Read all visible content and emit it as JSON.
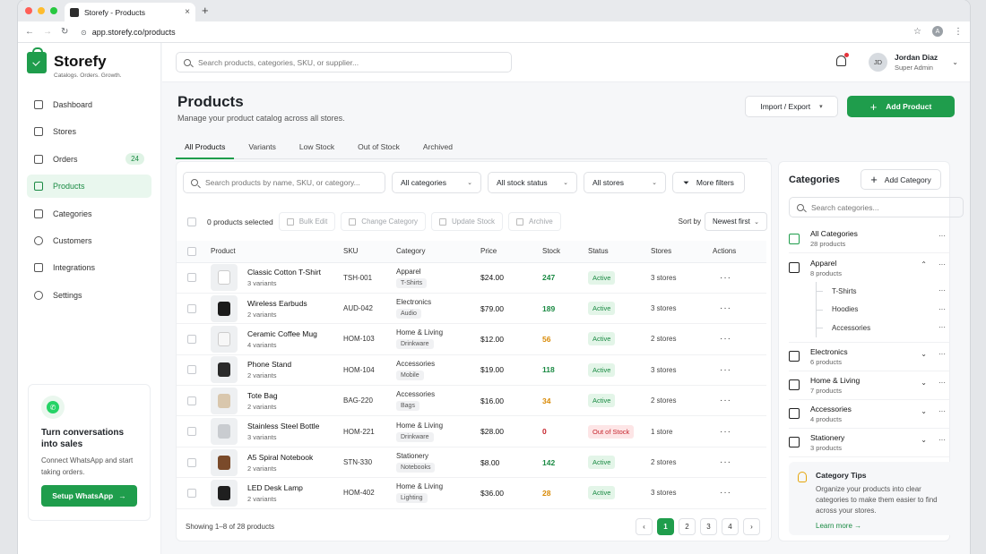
{
  "browser": {
    "tab_title": "Storefy - Products",
    "url": "app.storefy.co/products",
    "profile_initial": "A",
    "new_tab": "+"
  },
  "brand": {
    "name": "Storefy",
    "tagline": "Catalogs. Orders. Growth.",
    "accent": "#1f9d4c"
  },
  "sidebar": {
    "items": [
      {
        "label": "Dashboard",
        "icon": "grid-icon"
      },
      {
        "label": "Stores",
        "icon": "store-icon"
      },
      {
        "label": "Orders",
        "icon": "orders-icon",
        "badge": "24"
      },
      {
        "label": "Products",
        "icon": "bag-icon",
        "active": true
      },
      {
        "label": "Categories",
        "icon": "tag-icon"
      },
      {
        "label": "Customers",
        "icon": "users-icon"
      },
      {
        "label": "Integrations",
        "icon": "puzzle-icon"
      },
      {
        "label": "Settings",
        "icon": "gear-icon"
      }
    ],
    "promo": {
      "title": "Turn conversations into sales",
      "text": "Connect WhatsApp and start taking orders.",
      "button": "Setup WhatsApp"
    }
  },
  "topbar": {
    "search_placeholder": "Search products, categories, SKU, or supplier...",
    "user": {
      "initials": "JD",
      "name": "Jordan Diaz",
      "role": "Super Admin"
    }
  },
  "page": {
    "title": "Products",
    "subtitle": "Manage your product catalog across all stores.",
    "import_export": "Import / Export",
    "add_product": "Add Product",
    "tabs": [
      "All Products",
      "Variants",
      "Low Stock",
      "Out of Stock",
      "Archived"
    ]
  },
  "filters": {
    "search_placeholder": "Search products by name, SKU, or category...",
    "categories": "All categories",
    "stock_status": "All stock status",
    "stores": "All stores",
    "more": "More filters"
  },
  "toolbar": {
    "selected": "0 products selected",
    "bulk_edit": "Bulk Edit",
    "change_category": "Change Category",
    "update_stock": "Update Stock",
    "archive": "Archive",
    "sort_label": "Sort by",
    "sort_value": "Newest first"
  },
  "table": {
    "headers": [
      "Product",
      "SKU",
      "Category",
      "Price",
      "Stock",
      "Status",
      "Stores",
      "Actions"
    ],
    "rows": [
      {
        "name": "Classic Cotton T-Shirt",
        "variants": "3 variants",
        "sku": "TSH-001",
        "category": "Apparel",
        "sub": "T-Shirts",
        "price": "$24.00",
        "stock": "247",
        "stock_color": "#1a8a43",
        "status": "Active",
        "stores": "3 stores",
        "thumb": "#ffffff"
      },
      {
        "name": "Wireless Earbuds",
        "variants": "2 variants",
        "sku": "AUD-042",
        "category": "Electronics",
        "sub": "Audio",
        "price": "$79.00",
        "stock": "189",
        "stock_color": "#1a8a43",
        "status": "Active",
        "stores": "3 stores",
        "thumb": "#1b1b1b"
      },
      {
        "name": "Ceramic Coffee Mug",
        "variants": "4 variants",
        "sku": "HOM-103",
        "category": "Home & Living",
        "sub": "Drinkware",
        "price": "$12.00",
        "stock": "56",
        "stock_color": "#d98a06",
        "status": "Active",
        "stores": "2 stores",
        "thumb": "#f7f7f7"
      },
      {
        "name": "Phone Stand",
        "variants": "2 variants",
        "sku": "HOM-104",
        "category": "Accessories",
        "sub": "Mobile",
        "price": "$19.00",
        "stock": "118",
        "stock_color": "#1a8a43",
        "status": "Active",
        "stores": "3 stores",
        "thumb": "#2a2a2a"
      },
      {
        "name": "Tote Bag",
        "variants": "2 variants",
        "sku": "BAG-220",
        "category": "Accessories",
        "sub": "Bags",
        "price": "$16.00",
        "stock": "34",
        "stock_color": "#d98a06",
        "status": "Active",
        "stores": "2 stores",
        "thumb": "#d9c7ad"
      },
      {
        "name": "Stainless Steel Bottle",
        "variants": "3 variants",
        "sku": "HOM-221",
        "category": "Home & Living",
        "sub": "Drinkware",
        "price": "$28.00",
        "stock": "0",
        "stock_color": "#c6262e",
        "status": "Out of Stock",
        "stores": "1 store",
        "thumb": "#c9ccd0"
      },
      {
        "name": "A5 Spiral Notebook",
        "variants": "2 variants",
        "sku": "STN-330",
        "category": "Stationery",
        "sub": "Notebooks",
        "price": "$8.00",
        "stock": "142",
        "stock_color": "#1a8a43",
        "status": "Active",
        "stores": "2 stores",
        "thumb": "#7a4a2a"
      },
      {
        "name": "LED Desk Lamp",
        "variants": "2 variants",
        "sku": "HOM-402",
        "category": "Home & Living",
        "sub": "Lighting",
        "price": "$36.00",
        "stock": "28",
        "stock_color": "#d98a06",
        "status": "Active",
        "stores": "3 stores",
        "thumb": "#1f1f1f"
      }
    ],
    "footer": "Showing 1–8 of 28 products",
    "pages": [
      "1",
      "2",
      "3",
      "4"
    ],
    "prev": "‹",
    "next": "›"
  },
  "categories": {
    "title": "Categories",
    "add": "Add Category",
    "search_placeholder": "Search categories...",
    "items": [
      {
        "name": "All Categories",
        "count": "28 products",
        "icon": "cube-icon"
      },
      {
        "name": "Apparel",
        "count": "8 products",
        "icon": "shirt-icon",
        "expanded": true,
        "children": [
          "T-Shirts",
          "Hoodies",
          "Accessories"
        ]
      },
      {
        "name": "Electronics",
        "count": "6 products",
        "icon": "headphones-icon"
      },
      {
        "name": "Home & Living",
        "count": "7 products",
        "icon": "home-icon"
      },
      {
        "name": "Accessories",
        "count": "4 products",
        "icon": "tag-icon"
      },
      {
        "name": "Stationery",
        "count": "3 products",
        "icon": "document-icon"
      }
    ],
    "tips": {
      "title": "Category Tips",
      "text": "Organize your products into clear categories to make them easier to find across your stores.",
      "link": "Learn more"
    }
  }
}
